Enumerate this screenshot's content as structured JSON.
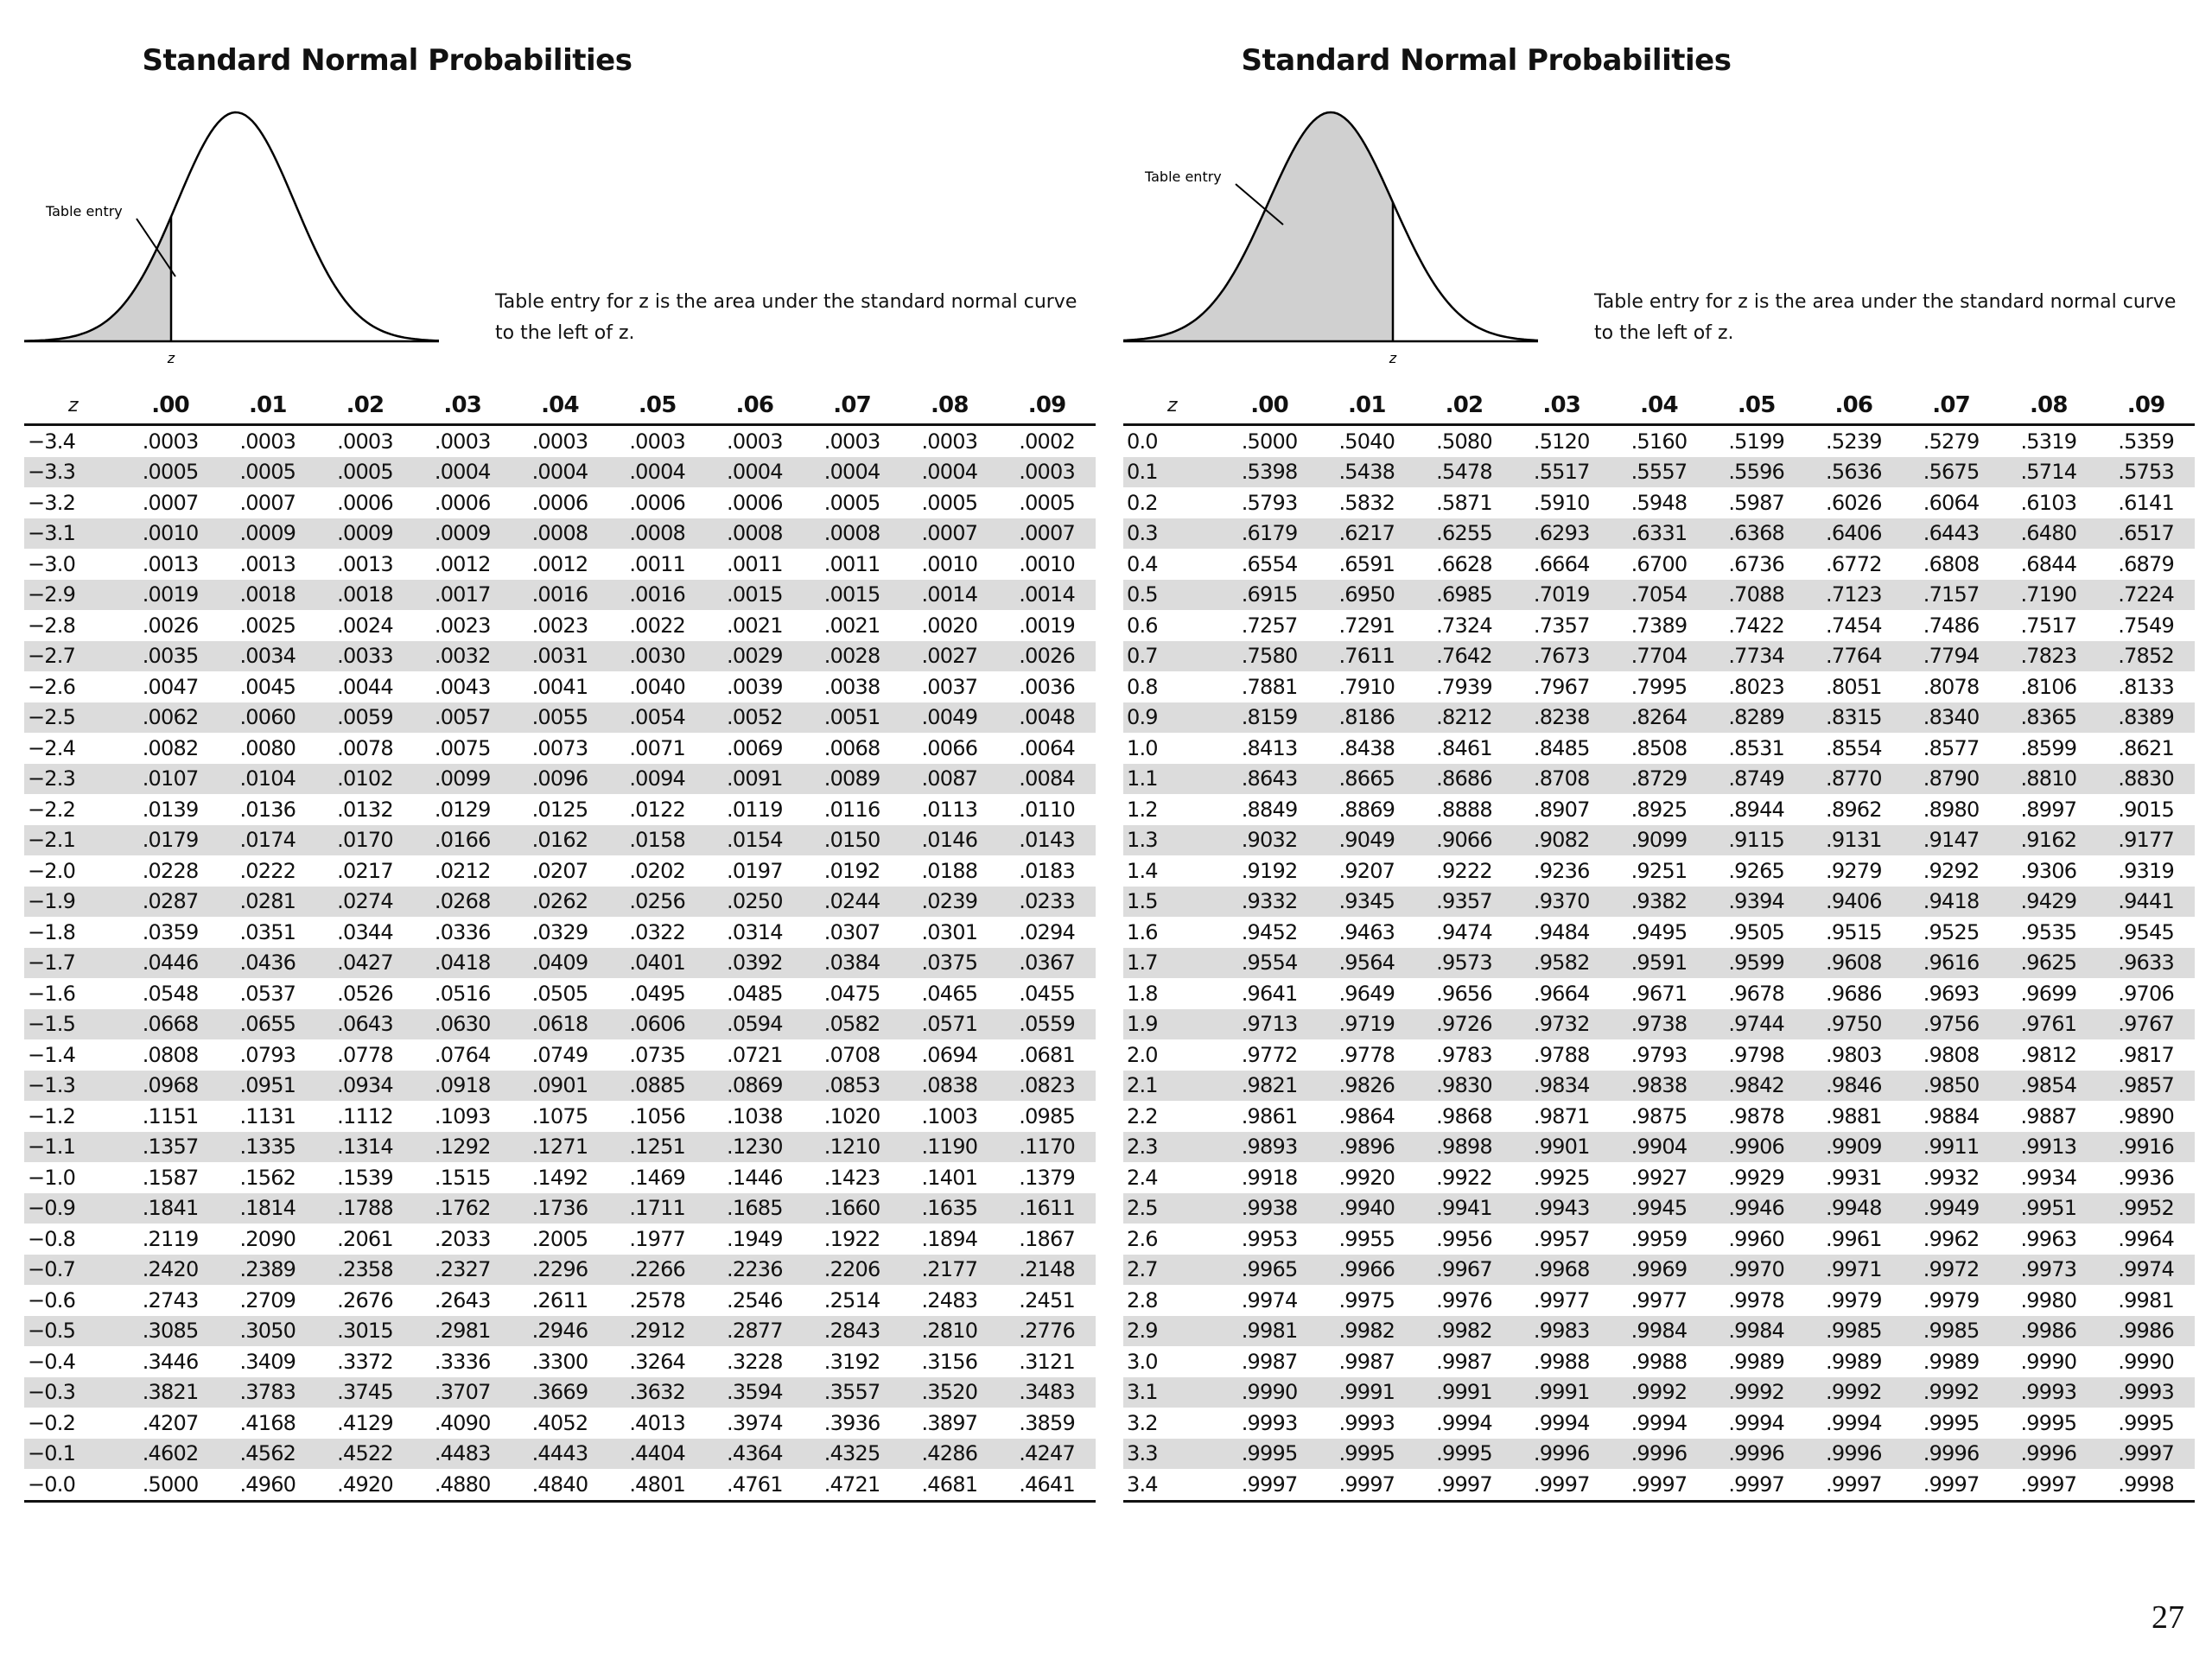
{
  "page_number": "27",
  "left": {
    "title": "Standard Normal Probabilities",
    "curve_label": "Table entry",
    "z_label": "z",
    "caption_line1": "Table entry for z is the area under the standard normal curve",
    "caption_line2": "to the left of z.",
    "headers": [
      "z",
      ".00",
      ".01",
      ".02",
      ".03",
      ".04",
      ".05",
      ".06",
      ".07",
      ".08",
      ".09"
    ],
    "rows": [
      [
        "−3.4",
        ".0003",
        ".0003",
        ".0003",
        ".0003",
        ".0003",
        ".0003",
        ".0003",
        ".0003",
        ".0003",
        ".0002"
      ],
      [
        "−3.3",
        ".0005",
        ".0005",
        ".0005",
        ".0004",
        ".0004",
        ".0004",
        ".0004",
        ".0004",
        ".0004",
        ".0003"
      ],
      [
        "−3.2",
        ".0007",
        ".0007",
        ".0006",
        ".0006",
        ".0006",
        ".0006",
        ".0006",
        ".0005",
        ".0005",
        ".0005"
      ],
      [
        "−3.1",
        ".0010",
        ".0009",
        ".0009",
        ".0009",
        ".0008",
        ".0008",
        ".0008",
        ".0008",
        ".0007",
        ".0007"
      ],
      [
        "−3.0",
        ".0013",
        ".0013",
        ".0013",
        ".0012",
        ".0012",
        ".0011",
        ".0011",
        ".0011",
        ".0010",
        ".0010"
      ],
      [
        "−2.9",
        ".0019",
        ".0018",
        ".0018",
        ".0017",
        ".0016",
        ".0016",
        ".0015",
        ".0015",
        ".0014",
        ".0014"
      ],
      [
        "−2.8",
        ".0026",
        ".0025",
        ".0024",
        ".0023",
        ".0023",
        ".0022",
        ".0021",
        ".0021",
        ".0020",
        ".0019"
      ],
      [
        "−2.7",
        ".0035",
        ".0034",
        ".0033",
        ".0032",
        ".0031",
        ".0030",
        ".0029",
        ".0028",
        ".0027",
        ".0026"
      ],
      [
        "−2.6",
        ".0047",
        ".0045",
        ".0044",
        ".0043",
        ".0041",
        ".0040",
        ".0039",
        ".0038",
        ".0037",
        ".0036"
      ],
      [
        "−2.5",
        ".0062",
        ".0060",
        ".0059",
        ".0057",
        ".0055",
        ".0054",
        ".0052",
        ".0051",
        ".0049",
        ".0048"
      ],
      [
        "−2.4",
        ".0082",
        ".0080",
        ".0078",
        ".0075",
        ".0073",
        ".0071",
        ".0069",
        ".0068",
        ".0066",
        ".0064"
      ],
      [
        "−2.3",
        ".0107",
        ".0104",
        ".0102",
        ".0099",
        ".0096",
        ".0094",
        ".0091",
        ".0089",
        ".0087",
        ".0084"
      ],
      [
        "−2.2",
        ".0139",
        ".0136",
        ".0132",
        ".0129",
        ".0125",
        ".0122",
        ".0119",
        ".0116",
        ".0113",
        ".0110"
      ],
      [
        "−2.1",
        ".0179",
        ".0174",
        ".0170",
        ".0166",
        ".0162",
        ".0158",
        ".0154",
        ".0150",
        ".0146",
        ".0143"
      ],
      [
        "−2.0",
        ".0228",
        ".0222",
        ".0217",
        ".0212",
        ".0207",
        ".0202",
        ".0197",
        ".0192",
        ".0188",
        ".0183"
      ],
      [
        "−1.9",
        ".0287",
        ".0281",
        ".0274",
        ".0268",
        ".0262",
        ".0256",
        ".0250",
        ".0244",
        ".0239",
        ".0233"
      ],
      [
        "−1.8",
        ".0359",
        ".0351",
        ".0344",
        ".0336",
        ".0329",
        ".0322",
        ".0314",
        ".0307",
        ".0301",
        ".0294"
      ],
      [
        "−1.7",
        ".0446",
        ".0436",
        ".0427",
        ".0418",
        ".0409",
        ".0401",
        ".0392",
        ".0384",
        ".0375",
        ".0367"
      ],
      [
        "−1.6",
        ".0548",
        ".0537",
        ".0526",
        ".0516",
        ".0505",
        ".0495",
        ".0485",
        ".0475",
        ".0465",
        ".0455"
      ],
      [
        "−1.5",
        ".0668",
        ".0655",
        ".0643",
        ".0630",
        ".0618",
        ".0606",
        ".0594",
        ".0582",
        ".0571",
        ".0559"
      ],
      [
        "−1.4",
        ".0808",
        ".0793",
        ".0778",
        ".0764",
        ".0749",
        ".0735",
        ".0721",
        ".0708",
        ".0694",
        ".0681"
      ],
      [
        "−1.3",
        ".0968",
        ".0951",
        ".0934",
        ".0918",
        ".0901",
        ".0885",
        ".0869",
        ".0853",
        ".0838",
        ".0823"
      ],
      [
        "−1.2",
        ".1151",
        ".1131",
        ".1112",
        ".1093",
        ".1075",
        ".1056",
        ".1038",
        ".1020",
        ".1003",
        ".0985"
      ],
      [
        "−1.1",
        ".1357",
        ".1335",
        ".1314",
        ".1292",
        ".1271",
        ".1251",
        ".1230",
        ".1210",
        ".1190",
        ".1170"
      ],
      [
        "−1.0",
        ".1587",
        ".1562",
        ".1539",
        ".1515",
        ".1492",
        ".1469",
        ".1446",
        ".1423",
        ".1401",
        ".1379"
      ],
      [
        "−0.9",
        ".1841",
        ".1814",
        ".1788",
        ".1762",
        ".1736",
        ".1711",
        ".1685",
        ".1660",
        ".1635",
        ".1611"
      ],
      [
        "−0.8",
        ".2119",
        ".2090",
        ".2061",
        ".2033",
        ".2005",
        ".1977",
        ".1949",
        ".1922",
        ".1894",
        ".1867"
      ],
      [
        "−0.7",
        ".2420",
        ".2389",
        ".2358",
        ".2327",
        ".2296",
        ".2266",
        ".2236",
        ".2206",
        ".2177",
        ".2148"
      ],
      [
        "−0.6",
        ".2743",
        ".2709",
        ".2676",
        ".2643",
        ".2611",
        ".2578",
        ".2546",
        ".2514",
        ".2483",
        ".2451"
      ],
      [
        "−0.5",
        ".3085",
        ".3050",
        ".3015",
        ".2981",
        ".2946",
        ".2912",
        ".2877",
        ".2843",
        ".2810",
        ".2776"
      ],
      [
        "−0.4",
        ".3446",
        ".3409",
        ".3372",
        ".3336",
        ".3300",
        ".3264",
        ".3228",
        ".3192",
        ".3156",
        ".3121"
      ],
      [
        "−0.3",
        ".3821",
        ".3783",
        ".3745",
        ".3707",
        ".3669",
        ".3632",
        ".3594",
        ".3557",
        ".3520",
        ".3483"
      ],
      [
        "−0.2",
        ".4207",
        ".4168",
        ".4129",
        ".4090",
        ".4052",
        ".4013",
        ".3974",
        ".3936",
        ".3897",
        ".3859"
      ],
      [
        "−0.1",
        ".4602",
        ".4562",
        ".4522",
        ".4483",
        ".4443",
        ".4404",
        ".4364",
        ".4325",
        ".4286",
        ".4247"
      ],
      [
        "−0.0",
        ".5000",
        ".4960",
        ".4920",
        ".4880",
        ".4840",
        ".4801",
        ".4761",
        ".4721",
        ".4681",
        ".4641"
      ]
    ]
  },
  "right": {
    "title": "Standard Normal Probabilities",
    "curve_label": "Table entry",
    "z_label": "z",
    "caption_line1": "Table entry for z is the area under the standard normal curve",
    "caption_line2": "to the left of z.",
    "headers": [
      "z",
      ".00",
      ".01",
      ".02",
      ".03",
      ".04",
      ".05",
      ".06",
      ".07",
      ".08",
      ".09"
    ],
    "rows": [
      [
        "0.0",
        ".5000",
        ".5040",
        ".5080",
        ".5120",
        ".5160",
        ".5199",
        ".5239",
        ".5279",
        ".5319",
        ".5359"
      ],
      [
        "0.1",
        ".5398",
        ".5438",
        ".5478",
        ".5517",
        ".5557",
        ".5596",
        ".5636",
        ".5675",
        ".5714",
        ".5753"
      ],
      [
        "0.2",
        ".5793",
        ".5832",
        ".5871",
        ".5910",
        ".5948",
        ".5987",
        ".6026",
        ".6064",
        ".6103",
        ".6141"
      ],
      [
        "0.3",
        ".6179",
        ".6217",
        ".6255",
        ".6293",
        ".6331",
        ".6368",
        ".6406",
        ".6443",
        ".6480",
        ".6517"
      ],
      [
        "0.4",
        ".6554",
        ".6591",
        ".6628",
        ".6664",
        ".6700",
        ".6736",
        ".6772",
        ".6808",
        ".6844",
        ".6879"
      ],
      [
        "0.5",
        ".6915",
        ".6950",
        ".6985",
        ".7019",
        ".7054",
        ".7088",
        ".7123",
        ".7157",
        ".7190",
        ".7224"
      ],
      [
        "0.6",
        ".7257",
        ".7291",
        ".7324",
        ".7357",
        ".7389",
        ".7422",
        ".7454",
        ".7486",
        ".7517",
        ".7549"
      ],
      [
        "0.7",
        ".7580",
        ".7611",
        ".7642",
        ".7673",
        ".7704",
        ".7734",
        ".7764",
        ".7794",
        ".7823",
        ".7852"
      ],
      [
        "0.8",
        ".7881",
        ".7910",
        ".7939",
        ".7967",
        ".7995",
        ".8023",
        ".8051",
        ".8078",
        ".8106",
        ".8133"
      ],
      [
        "0.9",
        ".8159",
        ".8186",
        ".8212",
        ".8238",
        ".8264",
        ".8289",
        ".8315",
        ".8340",
        ".8365",
        ".8389"
      ],
      [
        "1.0",
        ".8413",
        ".8438",
        ".8461",
        ".8485",
        ".8508",
        ".8531",
        ".8554",
        ".8577",
        ".8599",
        ".8621"
      ],
      [
        "1.1",
        ".8643",
        ".8665",
        ".8686",
        ".8708",
        ".8729",
        ".8749",
        ".8770",
        ".8790",
        ".8810",
        ".8830"
      ],
      [
        "1.2",
        ".8849",
        ".8869",
        ".8888",
        ".8907",
        ".8925",
        ".8944",
        ".8962",
        ".8980",
        ".8997",
        ".9015"
      ],
      [
        "1.3",
        ".9032",
        ".9049",
        ".9066",
        ".9082",
        ".9099",
        ".9115",
        ".9131",
        ".9147",
        ".9162",
        ".9177"
      ],
      [
        "1.4",
        ".9192",
        ".9207",
        ".9222",
        ".9236",
        ".9251",
        ".9265",
        ".9279",
        ".9292",
        ".9306",
        ".9319"
      ],
      [
        "1.5",
        ".9332",
        ".9345",
        ".9357",
        ".9370",
        ".9382",
        ".9394",
        ".9406",
        ".9418",
        ".9429",
        ".9441"
      ],
      [
        "1.6",
        ".9452",
        ".9463",
        ".9474",
        ".9484",
        ".9495",
        ".9505",
        ".9515",
        ".9525",
        ".9535",
        ".9545"
      ],
      [
        "1.7",
        ".9554",
        ".9564",
        ".9573",
        ".9582",
        ".9591",
        ".9599",
        ".9608",
        ".9616",
        ".9625",
        ".9633"
      ],
      [
        "1.8",
        ".9641",
        ".9649",
        ".9656",
        ".9664",
        ".9671",
        ".9678",
        ".9686",
        ".9693",
        ".9699",
        ".9706"
      ],
      [
        "1.9",
        ".9713",
        ".9719",
        ".9726",
        ".9732",
        ".9738",
        ".9744",
        ".9750",
        ".9756",
        ".9761",
        ".9767"
      ],
      [
        "2.0",
        ".9772",
        ".9778",
        ".9783",
        ".9788",
        ".9793",
        ".9798",
        ".9803",
        ".9808",
        ".9812",
        ".9817"
      ],
      [
        "2.1",
        ".9821",
        ".9826",
        ".9830",
        ".9834",
        ".9838",
        ".9842",
        ".9846",
        ".9850",
        ".9854",
        ".9857"
      ],
      [
        "2.2",
        ".9861",
        ".9864",
        ".9868",
        ".9871",
        ".9875",
        ".9878",
        ".9881",
        ".9884",
        ".9887",
        ".9890"
      ],
      [
        "2.3",
        ".9893",
        ".9896",
        ".9898",
        ".9901",
        ".9904",
        ".9906",
        ".9909",
        ".9911",
        ".9913",
        ".9916"
      ],
      [
        "2.4",
        ".9918",
        ".9920",
        ".9922",
        ".9925",
        ".9927",
        ".9929",
        ".9931",
        ".9932",
        ".9934",
        ".9936"
      ],
      [
        "2.5",
        ".9938",
        ".9940",
        ".9941",
        ".9943",
        ".9945",
        ".9946",
        ".9948",
        ".9949",
        ".9951",
        ".9952"
      ],
      [
        "2.6",
        ".9953",
        ".9955",
        ".9956",
        ".9957",
        ".9959",
        ".9960",
        ".9961",
        ".9962",
        ".9963",
        ".9964"
      ],
      [
        "2.7",
        ".9965",
        ".9966",
        ".9967",
        ".9968",
        ".9969",
        ".9970",
        ".9971",
        ".9972",
        ".9973",
        ".9974"
      ],
      [
        "2.8",
        ".9974",
        ".9975",
        ".9976",
        ".9977",
        ".9977",
        ".9978",
        ".9979",
        ".9979",
        ".9980",
        ".9981"
      ],
      [
        "2.9",
        ".9981",
        ".9982",
        ".9982",
        ".9983",
        ".9984",
        ".9984",
        ".9985",
        ".9985",
        ".9986",
        ".9986"
      ],
      [
        "3.0",
        ".9987",
        ".9987",
        ".9987",
        ".9988",
        ".9988",
        ".9989",
        ".9989",
        ".9989",
        ".9990",
        ".9990"
      ],
      [
        "3.1",
        ".9990",
        ".9991",
        ".9991",
        ".9991",
        ".9992",
        ".9992",
        ".9992",
        ".9992",
        ".9993",
        ".9993"
      ],
      [
        "3.2",
        ".9993",
        ".9993",
        ".9994",
        ".9994",
        ".9994",
        ".9994",
        ".9994",
        ".9995",
        ".9995",
        ".9995"
      ],
      [
        "3.3",
        ".9995",
        ".9995",
        ".9995",
        ".9996",
        ".9996",
        ".9996",
        ".9996",
        ".9996",
        ".9996",
        ".9997"
      ],
      [
        "3.4",
        ".9997",
        ".9997",
        ".9997",
        ".9997",
        ".9997",
        ".9997",
        ".9997",
        ".9997",
        ".9997",
        ".9998"
      ]
    ]
  }
}
